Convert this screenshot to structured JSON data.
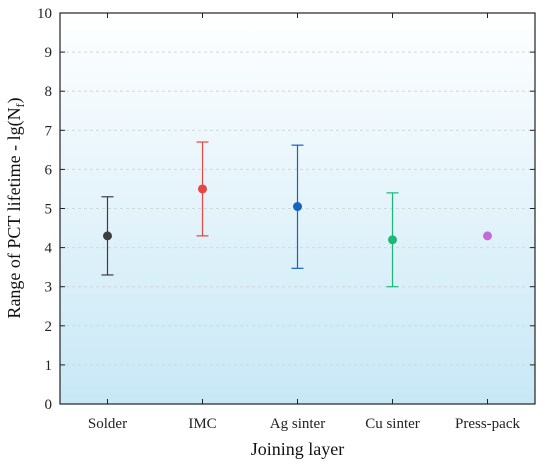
{
  "chart_data": {
    "type": "scatter",
    "xlabel": "Joining layer",
    "ylabel_main": "Range of PCT lifetime - lg(N",
    "ylabel_sub": "f",
    "ylabel_close": ")",
    "categories": [
      "Solder",
      "IMC",
      "Ag sinter",
      "Cu sinter",
      "Press-pack"
    ],
    "ylim": [
      0,
      10
    ],
    "yticks": [
      "0",
      "1",
      "2",
      "3",
      "4",
      "5",
      "6",
      "7",
      "8",
      "9",
      "10"
    ],
    "grid": "horizontal dashed",
    "series": [
      {
        "value": 4.3,
        "low": 3.3,
        "high": 5.3,
        "color": "#3d3d3d"
      },
      {
        "value": 5.5,
        "low": 4.3,
        "high": 6.7,
        "color": "#e84545"
      },
      {
        "value": 5.05,
        "low": 3.47,
        "high": 6.62,
        "color": "#1565c0"
      },
      {
        "value": 4.2,
        "low": 3.0,
        "high": 5.4,
        "color": "#1db877"
      },
      {
        "value": 4.3,
        "low": 4.3,
        "high": 4.3,
        "color": "#c46bd9"
      }
    ],
    "background_gradient": [
      "#ffffff",
      "#c8e8f6"
    ]
  }
}
